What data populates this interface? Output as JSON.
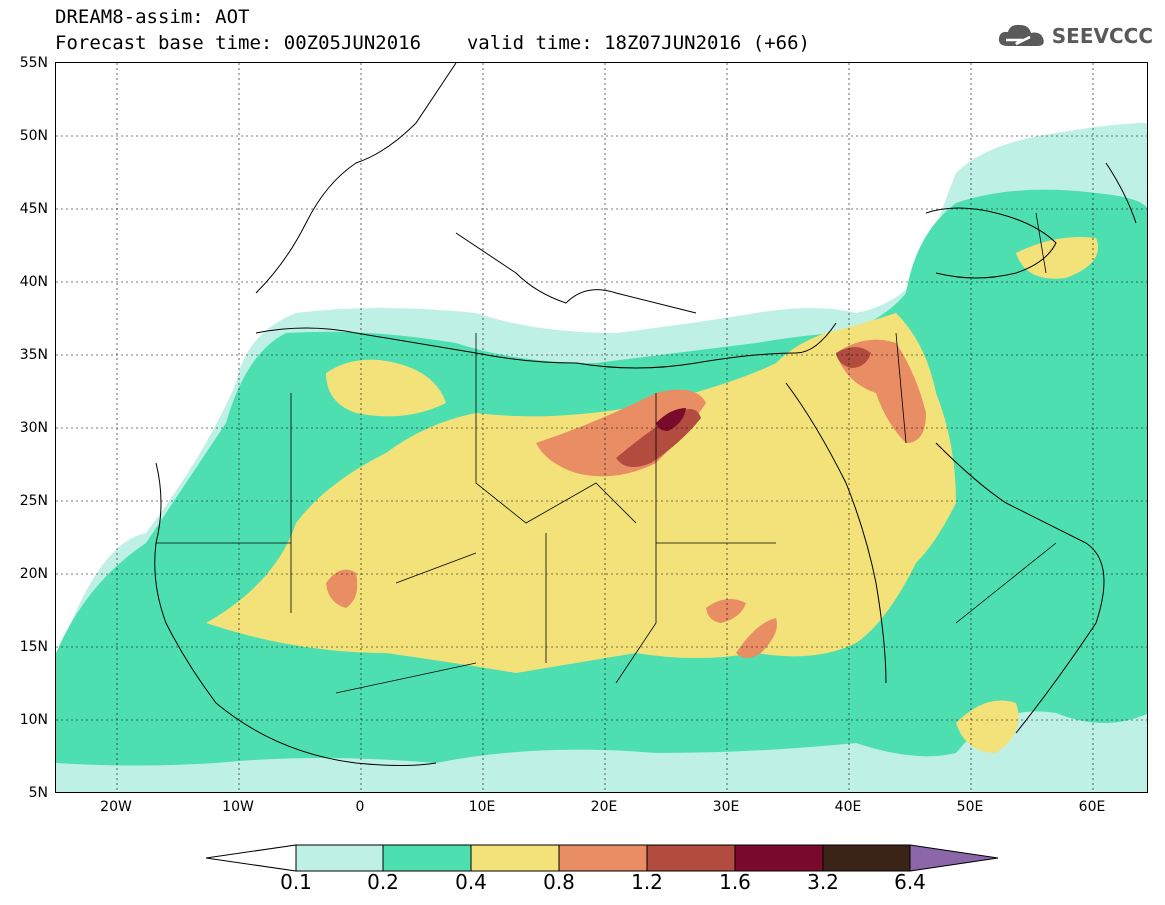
{
  "header": {
    "title_line1": "DREAM8-assim: AOT",
    "base_time_label": "Forecast base time: 00Z05JUN2016",
    "valid_time_label": "valid time: 18Z07JUN2016 (+66)",
    "brand": "SEEVCCC",
    "brand_icon": "cloud-icon"
  },
  "map": {
    "lat_ticks": [
      "55N",
      "50N",
      "45N",
      "40N",
      "35N",
      "30N",
      "25N",
      "20N",
      "15N",
      "10N",
      "5N"
    ],
    "lon_ticks": [
      "20W",
      "10W",
      "0",
      "10E",
      "20E",
      "30E",
      "40E",
      "50E",
      "60E"
    ]
  },
  "colorbar": {
    "labels": [
      "0.1",
      "0.2",
      "0.4",
      "0.8",
      "1.2",
      "1.6",
      "3.2",
      "6.4"
    ],
    "colors": [
      "#ffffff",
      "#bff0e6",
      "#4ddfb0",
      "#f3e27a",
      "#e88d64",
      "#b24c3e",
      "#7a0a2c",
      "#3a2418",
      "#8b66a8"
    ]
  }
}
